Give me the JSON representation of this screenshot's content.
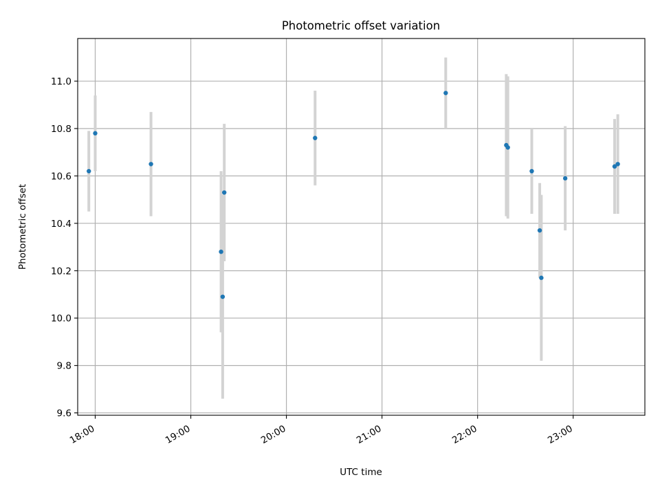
{
  "chart_data": {
    "type": "scatter",
    "title": "Photometric offset variation",
    "xlabel": "UTC time",
    "ylabel": "Photometric offset",
    "x_is_time": true,
    "xlim": [
      "17:49",
      "23:45"
    ],
    "ylim": [
      9.59,
      11.18
    ],
    "xticks": [
      "18:00",
      "19:00",
      "20:00",
      "21:00",
      "22:00",
      "23:00"
    ],
    "yticks": [
      "9.6",
      "9.8",
      "10.0",
      "10.2",
      "10.4",
      "10.6",
      "10.8",
      "11.0"
    ],
    "grid": true,
    "colors": {
      "point": "#1f77b4",
      "errorbar": "#d3d3d3"
    },
    "series": [
      {
        "points": [
          {
            "x": "17:56",
            "y": 10.62,
            "yerr": 0.17
          },
          {
            "x": "18:00",
            "y": 10.78,
            "yerr": 0.16
          },
          {
            "x": "18:35",
            "y": 10.65,
            "yerr": 0.22
          },
          {
            "x": "19:19",
            "y": 10.28,
            "yerr": 0.34
          },
          {
            "x": "19:20",
            "y": 10.09,
            "yerr": 0.43
          },
          {
            "x": "19:21",
            "y": 10.53,
            "yerr": 0.29
          },
          {
            "x": "20:18",
            "y": 10.76,
            "yerr": 0.2
          },
          {
            "x": "21:40",
            "y": 10.95,
            "yerr": 0.15
          },
          {
            "x": "22:18",
            "y": 10.73,
            "yerr": 0.3
          },
          {
            "x": "22:19",
            "y": 10.72,
            "yerr": 0.3
          },
          {
            "x": "22:34",
            "y": 10.62,
            "yerr": 0.18
          },
          {
            "x": "22:39",
            "y": 10.37,
            "yerr": 0.2
          },
          {
            "x": "22:40",
            "y": 10.17,
            "yerr": 0.35
          },
          {
            "x": "22:55",
            "y": 10.59,
            "yerr": 0.22
          },
          {
            "x": "23:26",
            "y": 10.64,
            "yerr": 0.2
          },
          {
            "x": "23:28",
            "y": 10.65,
            "yerr": 0.21
          }
        ]
      }
    ]
  }
}
